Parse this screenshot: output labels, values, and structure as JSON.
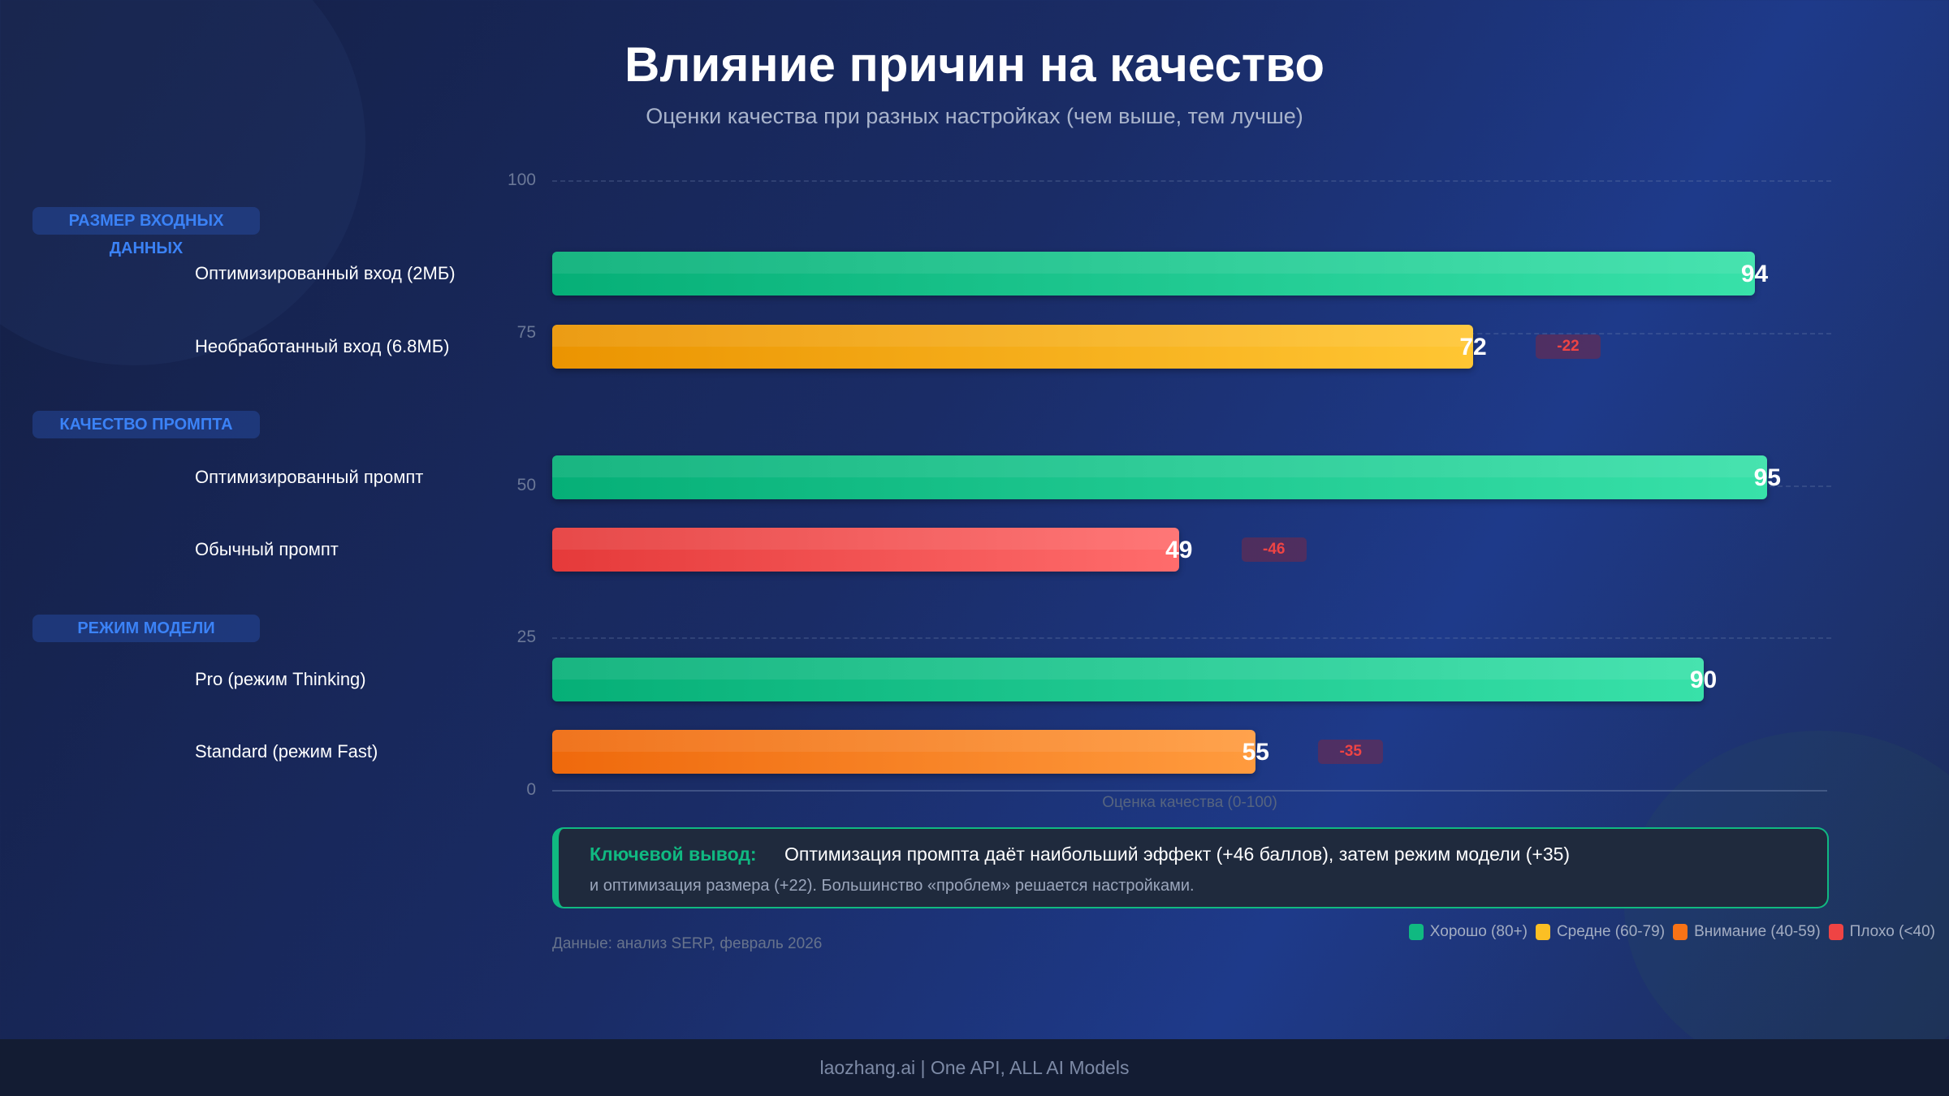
{
  "chart_data": {
    "type": "bar",
    "orientation": "horizontal",
    "title": "Влияние причин на качество",
    "subtitle": "Оценки качества при разных настройках (чем выше, тем лучше)",
    "xlabel": "Оценка качества (0-100)",
    "xlim": [
      0,
      100
    ],
    "ticks": [
      "0",
      "25",
      "50",
      "75",
      "100"
    ],
    "grid": true,
    "groups": [
      {
        "label": "РАЗМЕР ВХОДНЫХ ДАННЫХ",
        "items": [
          {
            "label": "Оптимизированный вход (2МБ)",
            "value": 94,
            "color": "#10b981",
            "delta": null
          },
          {
            "label": "Необработанный вход (6.8МБ)",
            "value": 72,
            "color": "#f59e0b",
            "delta": "-22"
          }
        ]
      },
      {
        "label": "КАЧЕСТВО ПРОМПТА",
        "items": [
          {
            "label": "Оптимизированный промпт",
            "value": 95,
            "color": "#10b981",
            "delta": null
          },
          {
            "label": "Обычный промпт",
            "value": 49,
            "color": "#ef4444",
            "delta": "-46"
          }
        ]
      },
      {
        "label": "РЕЖИМ МОДЕЛИ",
        "items": [
          {
            "label": "Pro (режим Thinking)",
            "value": 90,
            "color": "#10b981",
            "delta": null
          },
          {
            "label": "Standard (режим Fast)",
            "value": 55,
            "color": "#f97316",
            "delta": "-35"
          }
        ]
      }
    ],
    "legend": {
      "placement": "bottom-right",
      "items": [
        {
          "label": "Хорошо (80+)",
          "color": "#10b981"
        },
        {
          "label": "Средне (60-79)",
          "color": "#fbbf24"
        },
        {
          "label": "Внимание (40-59)",
          "color": "#f97316"
        },
        {
          "label": "Плохо (<40)",
          "color": "#ef4444"
        }
      ]
    }
  },
  "insight": {
    "key": "Ключевой вывод:",
    "line1": "Оптимизация промпта даёт наибольший эффект (+46 баллов), затем режим модели (+35)",
    "line2": "и оптимизация размера (+22). Большинство «проблем» решается настройками."
  },
  "source": "Данные: анализ SERP, февраль 2026",
  "footer": "laozhang.ai | One API, ALL AI Models"
}
